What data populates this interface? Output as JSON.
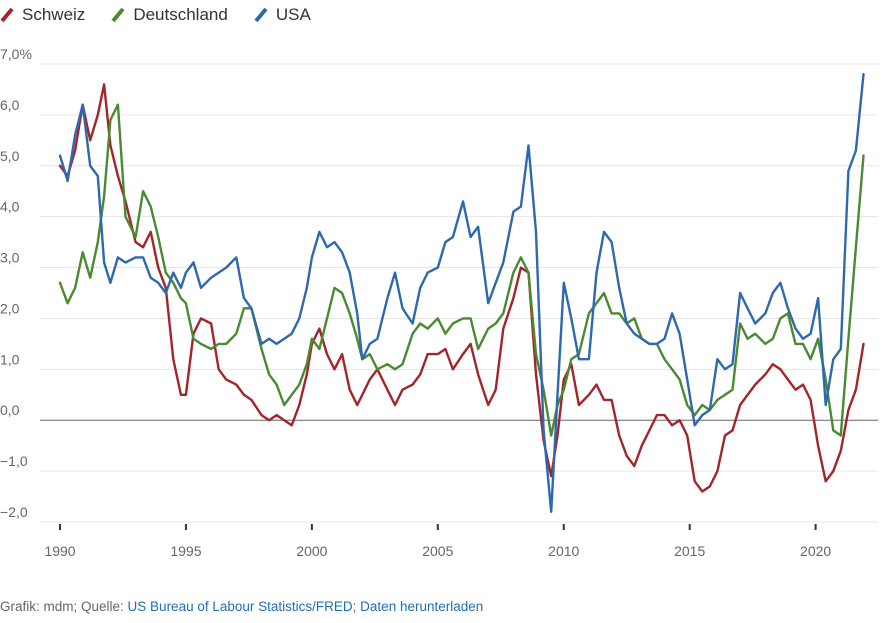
{
  "legend": [
    {
      "name": "Schweiz",
      "color": "#a3252b",
      "icon": "pencil-mark-icon"
    },
    {
      "name": "Deutschland",
      "color": "#4a8a32",
      "icon": "pencil-mark-icon"
    },
    {
      "name": "USA",
      "color": "#2f69ad",
      "icon": "pencil-mark-icon"
    }
  ],
  "footer": {
    "prefix": "Grafik: mdm; Quelle: ",
    "source_link": "US Bureau of Labour Statistics/FRED",
    "separator": "; ",
    "download_link": "Daten herunterladen"
  },
  "chart_data": {
    "type": "line",
    "title": "",
    "xlabel": "",
    "ylabel": "",
    "xlim": [
      1990,
      2022
    ],
    "ylim": [
      -2.0,
      7.0
    ],
    "y_ticks": [
      -2,
      -1,
      0,
      1,
      2,
      3,
      4,
      5,
      6,
      7
    ],
    "y_tick_labels": [
      "−2,0",
      "−1,0",
      "0,0",
      "1,0",
      "2,0",
      "3,0",
      "4,0",
      "5,0",
      "6,0",
      "7,0%"
    ],
    "x_ticks": [
      1990,
      1995,
      2000,
      2005,
      2010,
      2015,
      2020
    ],
    "x_tick_labels": [
      "1990",
      "1995",
      "2000",
      "2005",
      "2010",
      "2015",
      "2020"
    ],
    "grid": "horizontal",
    "legend_position": "top-left",
    "series": [
      {
        "name": "Schweiz",
        "color": "#a3252b",
        "x": [
          1990.0,
          1990.3,
          1990.6,
          1990.9,
          1991.2,
          1991.5,
          1991.75,
          1992.0,
          1992.3,
          1992.6,
          1993.0,
          1993.3,
          1993.6,
          1993.9,
          1994.2,
          1994.5,
          1994.8,
          1995.0,
          1995.3,
          1995.6,
          1996.0,
          1996.3,
          1996.6,
          1997.0,
          1997.3,
          1997.6,
          1998.0,
          1998.3,
          1998.6,
          1998.9,
          1999.2,
          1999.5,
          1999.8,
          2000.0,
          2000.3,
          2000.6,
          2000.9,
          2001.2,
          2001.5,
          2001.8,
          2002.0,
          2002.3,
          2002.6,
          2003.0,
          2003.3,
          2003.6,
          2004.0,
          2004.3,
          2004.6,
          2005.0,
          2005.3,
          2005.6,
          2006.0,
          2006.3,
          2006.6,
          2007.0,
          2007.3,
          2007.6,
          2008.0,
          2008.3,
          2008.6,
          2008.9,
          2009.2,
          2009.5,
          2009.75,
          2010.0,
          2010.3,
          2010.6,
          2011.0,
          2011.3,
          2011.6,
          2011.9,
          2012.2,
          2012.5,
          2012.8,
          2013.1,
          2013.4,
          2013.7,
          2014.0,
          2014.3,
          2014.6,
          2014.9,
          2015.2,
          2015.5,
          2015.8,
          2016.1,
          2016.4,
          2016.7,
          2017.0,
          2017.3,
          2017.6,
          2018.0,
          2018.3,
          2018.6,
          2018.9,
          2019.2,
          2019.5,
          2019.8,
          2020.1,
          2020.4,
          2020.7,
          2021.0,
          2021.3,
          2021.6,
          2021.9
        ],
        "values": [
          5.0,
          4.8,
          5.3,
          6.2,
          5.5,
          6.0,
          6.6,
          5.4,
          4.8,
          4.3,
          3.5,
          3.4,
          3.7,
          3.0,
          2.6,
          1.2,
          0.5,
          0.5,
          1.7,
          2.0,
          1.9,
          1.0,
          0.8,
          0.7,
          0.5,
          0.4,
          0.1,
          0.0,
          0.1,
          0.0,
          -0.1,
          0.3,
          0.9,
          1.5,
          1.8,
          1.3,
          1.0,
          1.3,
          0.6,
          0.3,
          0.5,
          0.8,
          1.0,
          0.6,
          0.3,
          0.6,
          0.7,
          0.9,
          1.3,
          1.3,
          1.4,
          1.0,
          1.3,
          1.5,
          0.9,
          0.3,
          0.6,
          1.8,
          2.4,
          3.0,
          2.9,
          0.9,
          -0.4,
          -1.1,
          -0.3,
          0.8,
          1.1,
          0.3,
          0.5,
          0.7,
          0.4,
          0.4,
          -0.3,
          -0.7,
          -0.9,
          -0.5,
          -0.2,
          0.1,
          0.1,
          -0.1,
          0.0,
          -0.3,
          -1.2,
          -1.4,
          -1.3,
          -1.0,
          -0.3,
          -0.2,
          0.3,
          0.5,
          0.7,
          0.9,
          1.1,
          1.0,
          0.8,
          0.6,
          0.7,
          0.4,
          -0.5,
          -1.2,
          -1.0,
          -0.6,
          0.2,
          0.6,
          1.5
        ]
      },
      {
        "name": "Deutschland",
        "color": "#4a8a32",
        "x": [
          1990.0,
          1990.3,
          1990.6,
          1990.9,
          1991.2,
          1991.5,
          1991.75,
          1992.0,
          1992.3,
          1992.6,
          1993.0,
          1993.3,
          1993.6,
          1993.9,
          1994.2,
          1994.5,
          1994.8,
          1995.0,
          1995.3,
          1995.6,
          1996.0,
          1996.3,
          1996.6,
          1997.0,
          1997.3,
          1997.6,
          1998.0,
          1998.3,
          1998.6,
          1998.9,
          1999.2,
          1999.5,
          1999.8,
          2000.0,
          2000.3,
          2000.6,
          2000.9,
          2001.2,
          2001.5,
          2001.8,
          2002.0,
          2002.3,
          2002.6,
          2003.0,
          2003.3,
          2003.6,
          2004.0,
          2004.3,
          2004.6,
          2005.0,
          2005.3,
          2005.6,
          2006.0,
          2006.3,
          2006.6,
          2007.0,
          2007.3,
          2007.6,
          2008.0,
          2008.3,
          2008.6,
          2008.9,
          2009.2,
          2009.5,
          2009.75,
          2010.0,
          2010.3,
          2010.6,
          2011.0,
          2011.3,
          2011.6,
          2011.9,
          2012.2,
          2012.5,
          2012.8,
          2013.1,
          2013.4,
          2013.7,
          2014.0,
          2014.3,
          2014.6,
          2014.9,
          2015.2,
          2015.5,
          2015.8,
          2016.1,
          2016.4,
          2016.7,
          2017.0,
          2017.3,
          2017.6,
          2018.0,
          2018.3,
          2018.6,
          2018.9,
          2019.2,
          2019.5,
          2019.8,
          2020.1,
          2020.4,
          2020.7,
          2021.0,
          2021.3,
          2021.6,
          2021.9
        ],
        "values": [
          2.7,
          2.3,
          2.6,
          3.3,
          2.8,
          3.5,
          4.4,
          5.9,
          6.2,
          4.0,
          3.6,
          4.5,
          4.2,
          3.6,
          2.9,
          2.7,
          2.4,
          2.3,
          1.6,
          1.5,
          1.4,
          1.5,
          1.5,
          1.7,
          2.2,
          2.2,
          1.4,
          0.9,
          0.7,
          0.3,
          0.5,
          0.7,
          1.1,
          1.6,
          1.4,
          2.0,
          2.6,
          2.5,
          2.1,
          1.6,
          1.2,
          1.3,
          1.0,
          1.1,
          1.0,
          1.1,
          1.7,
          1.9,
          1.8,
          2.0,
          1.7,
          1.9,
          2.0,
          2.0,
          1.4,
          1.8,
          1.9,
          2.1,
          2.9,
          3.2,
          2.9,
          1.3,
          0.6,
          -0.3,
          0.3,
          0.6,
          1.2,
          1.3,
          2.1,
          2.3,
          2.5,
          2.1,
          2.1,
          1.9,
          2.0,
          1.6,
          1.5,
          1.5,
          1.2,
          1.0,
          0.8,
          0.3,
          0.1,
          0.3,
          0.2,
          0.4,
          0.5,
          0.6,
          1.9,
          1.6,
          1.7,
          1.5,
          1.6,
          2.0,
          2.1,
          1.5,
          1.5,
          1.2,
          1.6,
          0.8,
          -0.2,
          -0.3,
          1.6,
          3.4,
          5.2
        ]
      },
      {
        "name": "USA",
        "color": "#2f69ad",
        "x": [
          1990.0,
          1990.3,
          1990.6,
          1990.9,
          1991.2,
          1991.5,
          1991.75,
          1992.0,
          1992.3,
          1992.6,
          1993.0,
          1993.3,
          1993.6,
          1993.9,
          1994.2,
          1994.5,
          1994.8,
          1995.0,
          1995.3,
          1995.6,
          1996.0,
          1996.3,
          1996.6,
          1997.0,
          1997.3,
          1997.6,
          1998.0,
          1998.3,
          1998.6,
          1998.9,
          1999.2,
          1999.5,
          1999.8,
          2000.0,
          2000.3,
          2000.6,
          2000.9,
          2001.2,
          2001.5,
          2001.8,
          2002.0,
          2002.3,
          2002.6,
          2003.0,
          2003.3,
          2003.6,
          2004.0,
          2004.3,
          2004.6,
          2005.0,
          2005.3,
          2005.6,
          2006.0,
          2006.3,
          2006.6,
          2007.0,
          2007.3,
          2007.6,
          2008.0,
          2008.3,
          2008.6,
          2008.9,
          2009.2,
          2009.5,
          2009.75,
          2010.0,
          2010.3,
          2010.6,
          2011.0,
          2011.3,
          2011.6,
          2011.9,
          2012.2,
          2012.5,
          2012.8,
          2013.1,
          2013.4,
          2013.7,
          2014.0,
          2014.3,
          2014.6,
          2014.9,
          2015.2,
          2015.5,
          2015.8,
          2016.1,
          2016.4,
          2016.7,
          2017.0,
          2017.3,
          2017.6,
          2018.0,
          2018.3,
          2018.6,
          2018.9,
          2019.2,
          2019.5,
          2019.8,
          2020.1,
          2020.4,
          2020.7,
          2021.0,
          2021.3,
          2021.6,
          2021.9
        ],
        "values": [
          5.2,
          4.7,
          5.6,
          6.2,
          5.0,
          4.8,
          3.1,
          2.7,
          3.2,
          3.1,
          3.2,
          3.2,
          2.8,
          2.7,
          2.5,
          2.9,
          2.6,
          2.9,
          3.1,
          2.6,
          2.8,
          2.9,
          3.0,
          3.2,
          2.4,
          2.2,
          1.5,
          1.6,
          1.5,
          1.6,
          1.7,
          2.0,
          2.6,
          3.2,
          3.7,
          3.4,
          3.5,
          3.3,
          2.9,
          2.1,
          1.2,
          1.5,
          1.6,
          2.4,
          2.9,
          2.2,
          1.9,
          2.6,
          2.9,
          3.0,
          3.5,
          3.6,
          4.3,
          3.6,
          3.8,
          2.3,
          2.7,
          3.1,
          4.1,
          4.2,
          5.4,
          3.7,
          -0.2,
          -1.8,
          0.5,
          2.7,
          2.0,
          1.2,
          1.2,
          2.9,
          3.7,
          3.5,
          2.6,
          1.9,
          1.7,
          1.6,
          1.5,
          1.5,
          1.6,
          2.1,
          1.7,
          0.8,
          -0.1,
          0.1,
          0.2,
          1.2,
          1.0,
          1.1,
          2.5,
          2.2,
          1.9,
          2.1,
          2.5,
          2.7,
          2.2,
          1.8,
          1.6,
          1.7,
          2.4,
          0.3,
          1.2,
          1.4,
          4.9,
          5.3,
          6.8
        ]
      }
    ]
  }
}
